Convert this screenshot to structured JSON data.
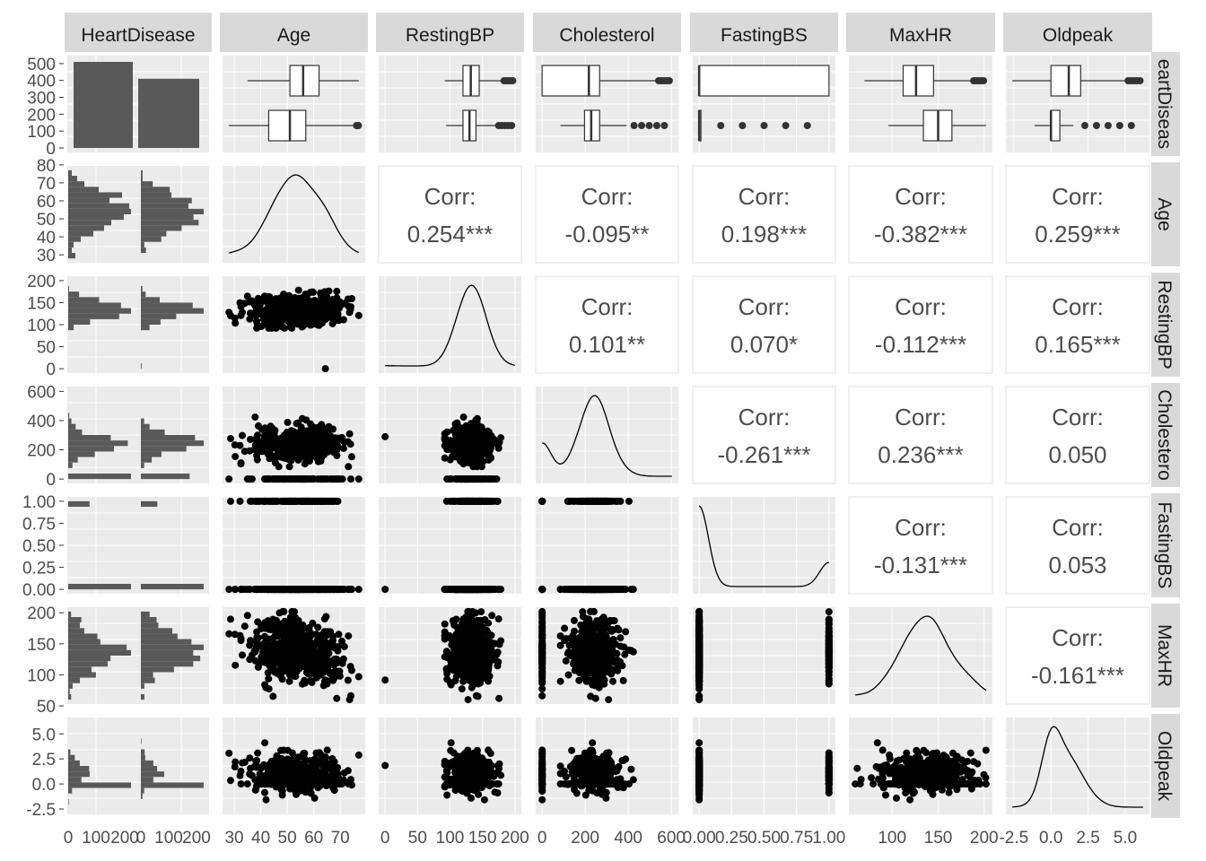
{
  "chart_data": {
    "type": "scatter-matrix",
    "variables": [
      "HeartDisease",
      "Age",
      "RestingBP",
      "Cholesterol",
      "FastingBS",
      "MaxHR",
      "Oldpeak"
    ],
    "strip_top": [
      "HeartDisease",
      "Age",
      "RestingBP",
      "Cholesterol",
      "FastingBS",
      "MaxHR",
      "Oldpeak"
    ],
    "strip_right": [
      "eartDiseas",
      "Age",
      "RestingBP",
      "Cholestero",
      "FastingBS",
      "MaxHR",
      "Oldpeak"
    ],
    "corr_label": "Corr:",
    "correlations": [
      {
        "row": "Age",
        "col": "RestingBP",
        "value": "0.254***"
      },
      {
        "row": "Age",
        "col": "Cholesterol",
        "value": "-0.095**"
      },
      {
        "row": "Age",
        "col": "FastingBS",
        "value": "0.198***"
      },
      {
        "row": "Age",
        "col": "MaxHR",
        "value": "-0.382***"
      },
      {
        "row": "Age",
        "col": "Oldpeak",
        "value": "0.259***"
      },
      {
        "row": "RestingBP",
        "col": "Cholesterol",
        "value": "0.101**"
      },
      {
        "row": "RestingBP",
        "col": "FastingBS",
        "value": "0.070*"
      },
      {
        "row": "RestingBP",
        "col": "MaxHR",
        "value": "-0.112***"
      },
      {
        "row": "RestingBP",
        "col": "Oldpeak",
        "value": "0.165***"
      },
      {
        "row": "Cholesterol",
        "col": "FastingBS",
        "value": "-0.261***"
      },
      {
        "row": "Cholesterol",
        "col": "MaxHR",
        "value": "0.236***"
      },
      {
        "row": "Cholesterol",
        "col": "Oldpeak",
        "value": "0.050"
      },
      {
        "row": "FastingBS",
        "col": "MaxHR",
        "value": "-0.131***"
      },
      {
        "row": "FastingBS",
        "col": "Oldpeak",
        "value": "0.053"
      },
      {
        "row": "MaxHR",
        "col": "Oldpeak",
        "value": "-0.161***"
      }
    ],
    "heartdisease_counts": [
      510,
      410
    ],
    "x_ticks": [
      {
        "labels": [
          "0",
          "100",
          "200",
          "0",
          "100",
          "200"
        ]
      },
      {
        "labels": [
          "30",
          "40",
          "50",
          "60",
          "70"
        ]
      },
      {
        "labels": [
          "0",
          "50",
          "100",
          "150",
          "200"
        ]
      },
      {
        "labels": [
          "0",
          "200",
          "400",
          "600"
        ]
      },
      {
        "labels": [
          "0.00",
          "0.25",
          "0.50",
          "0.75",
          "1.00"
        ]
      },
      {
        "labels": [
          "100",
          "150",
          "200"
        ]
      },
      {
        "labels": [
          "-2.5",
          "0.0",
          "2.5",
          "5.0"
        ]
      }
    ],
    "y_ticks": [
      {
        "labels": [
          "0",
          "100",
          "200",
          "300",
          "400",
          "500"
        ]
      },
      {
        "labels": [
          "30",
          "40",
          "50",
          "60",
          "70",
          "80"
        ]
      },
      {
        "labels": [
          "0",
          "50",
          "100",
          "150",
          "200"
        ]
      },
      {
        "labels": [
          "0",
          "200",
          "400",
          "600"
        ]
      },
      {
        "labels": [
          "0.00",
          "0.25",
          "0.50",
          "0.75",
          "1.00"
        ]
      },
      {
        "labels": [
          "50",
          "100",
          "150",
          "200"
        ]
      },
      {
        "labels": [
          "-2.5",
          "0.0",
          "2.5",
          "5.0"
        ]
      }
    ],
    "x_tick_values": [
      [
        0,
        100,
        200
      ],
      [
        30,
        40,
        50,
        60,
        70
      ],
      [
        0,
        50,
        100,
        150,
        200
      ],
      [
        0,
        200,
        400,
        600
      ],
      [
        0,
        0.25,
        0.5,
        0.75,
        1
      ],
      [
        100,
        150,
        200
      ],
      [
        -2.5,
        0,
        2.5,
        5
      ]
    ],
    "ranges": [
      [
        0,
        1
      ],
      [
        28,
        77
      ],
      [
        0,
        200
      ],
      [
        0,
        603
      ],
      [
        0,
        1
      ],
      [
        60,
        202
      ],
      [
        -2.6,
        6.2
      ]
    ],
    "y_range_counts": [
      0,
      510
    ],
    "boxplots": [
      {
        "var": "Age",
        "groups": [
          {
            "q1": 51,
            "med": 56,
            "q3": 62,
            "lo": 35,
            "hi": 77
          },
          {
            "q1": 43,
            "med": 51,
            "q3": 57,
            "lo": 28,
            "hi": 76
          }
        ]
      },
      {
        "var": "RestingBP",
        "groups": [
          {
            "q1": 120,
            "med": 132,
            "q3": 145,
            "lo": 92,
            "hi": 180
          },
          {
            "q1": 120,
            "med": 130,
            "q3": 140,
            "lo": 94,
            "hi": 170
          }
        ]
      },
      {
        "var": "Cholesterol",
        "groups": [
          {
            "q1": 0,
            "med": 217,
            "q3": 267,
            "lo": 0,
            "hi": 529
          },
          {
            "q1": 197,
            "med": 228,
            "q3": 267,
            "lo": 85,
            "hi": 392
          }
        ]
      },
      {
        "var": "FastingBS",
        "groups": [
          {
            "q1": 0,
            "med": 0,
            "q3": 1,
            "lo": 0,
            "hi": 1
          },
          {
            "q1": 0,
            "med": 0,
            "q3": 0,
            "lo": 0,
            "hi": 0
          }
        ]
      },
      {
        "var": "MaxHR",
        "groups": [
          {
            "q1": 112,
            "med": 126,
            "q3": 145,
            "lo": 70,
            "hi": 186
          },
          {
            "q1": 134,
            "med": 150,
            "q3": 165,
            "lo": 96,
            "hi": 202
          }
        ]
      },
      {
        "var": "Oldpeak",
        "groups": [
          {
            "q1": 0,
            "med": 1.2,
            "q3": 2,
            "lo": -2.6,
            "hi": 5
          },
          {
            "q1": 0,
            "med": 0,
            "q3": 0.6,
            "lo": -1.1,
            "hi": 1.5
          }
        ]
      }
    ]
  }
}
